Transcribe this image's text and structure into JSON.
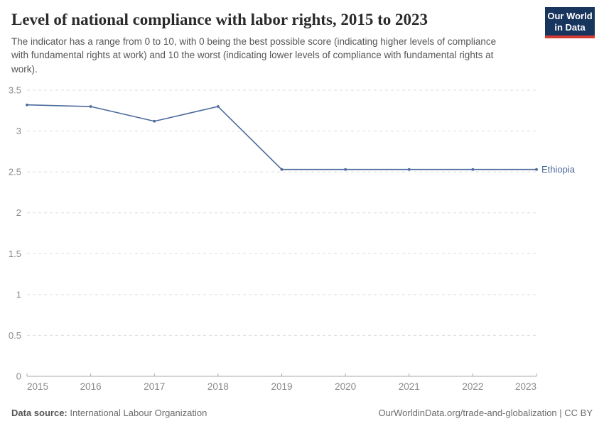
{
  "header": {
    "title": "Level of national compliance with labor rights, 2015 to 2023",
    "subtitle": "The indicator has a range from 0 to 10, with 0 being the best possible score (indicating higher levels of compliance with fundamental rights at work) and 10 the worst (indicating lower levels of compliance with fundamental rights at work).",
    "logo": {
      "line1": "Our World",
      "line2": "in Data",
      "bg_color": "#18355e",
      "stripe_color": "#d43b33",
      "text_color": "#ffffff"
    }
  },
  "chart_data": {
    "type": "line",
    "title": "Level of national compliance with labor rights, 2015 to 2023",
    "x": [
      2015,
      2016,
      2017,
      2018,
      2019,
      2020,
      2021,
      2022,
      2023
    ],
    "series": [
      {
        "name": "Ethiopia",
        "color": "#4C6A9C",
        "values": [
          3.32,
          3.3,
          3.12,
          3.3,
          2.53,
          2.53,
          2.53,
          2.53,
          2.53
        ]
      }
    ],
    "ylim": [
      0,
      3.5
    ],
    "yticks": [
      0,
      0.5,
      1,
      1.5,
      2,
      2.5,
      3,
      3.5
    ],
    "grid": "horizontal-dashed",
    "legend": "line-end-label",
    "xlabel": "",
    "ylabel": "",
    "axis_color": "#a8a8a8",
    "grid_color": "#dddddd",
    "tick_label_color": "#8a8a8a"
  },
  "footer": {
    "source_label": "Data source:",
    "source_value": "International Labour Organization",
    "credit": "OurWorldinData.org/trade-and-globalization | CC BY"
  }
}
